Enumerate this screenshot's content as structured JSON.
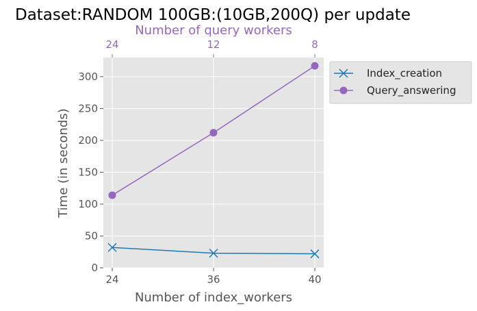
{
  "chart_data": {
    "type": "line",
    "title": "Dataset:RANDOM 100GB:(10GB,200Q) per update",
    "xlabel": "Number of index_workers",
    "ylabel": "Time (in seconds)",
    "categories": [
      "24",
      "36",
      "40"
    ],
    "top_axis": {
      "label": "Number of query workers",
      "categories": [
        "24",
        "12",
        "8"
      ],
      "color": "#9467bd"
    },
    "ylim": [
      0,
      330
    ],
    "yticks": [
      0,
      50,
      100,
      150,
      200,
      250,
      300
    ],
    "grid": true,
    "legend_position": "outside-right",
    "background": "#e5e5e5",
    "series": [
      {
        "name": "Index_creation",
        "values": [
          32,
          23,
          22
        ],
        "color": "#1f77b4",
        "marker": "x"
      },
      {
        "name": "Query_answering",
        "values": [
          114,
          212,
          317
        ],
        "color": "#9467bd",
        "marker": "circle"
      }
    ]
  }
}
